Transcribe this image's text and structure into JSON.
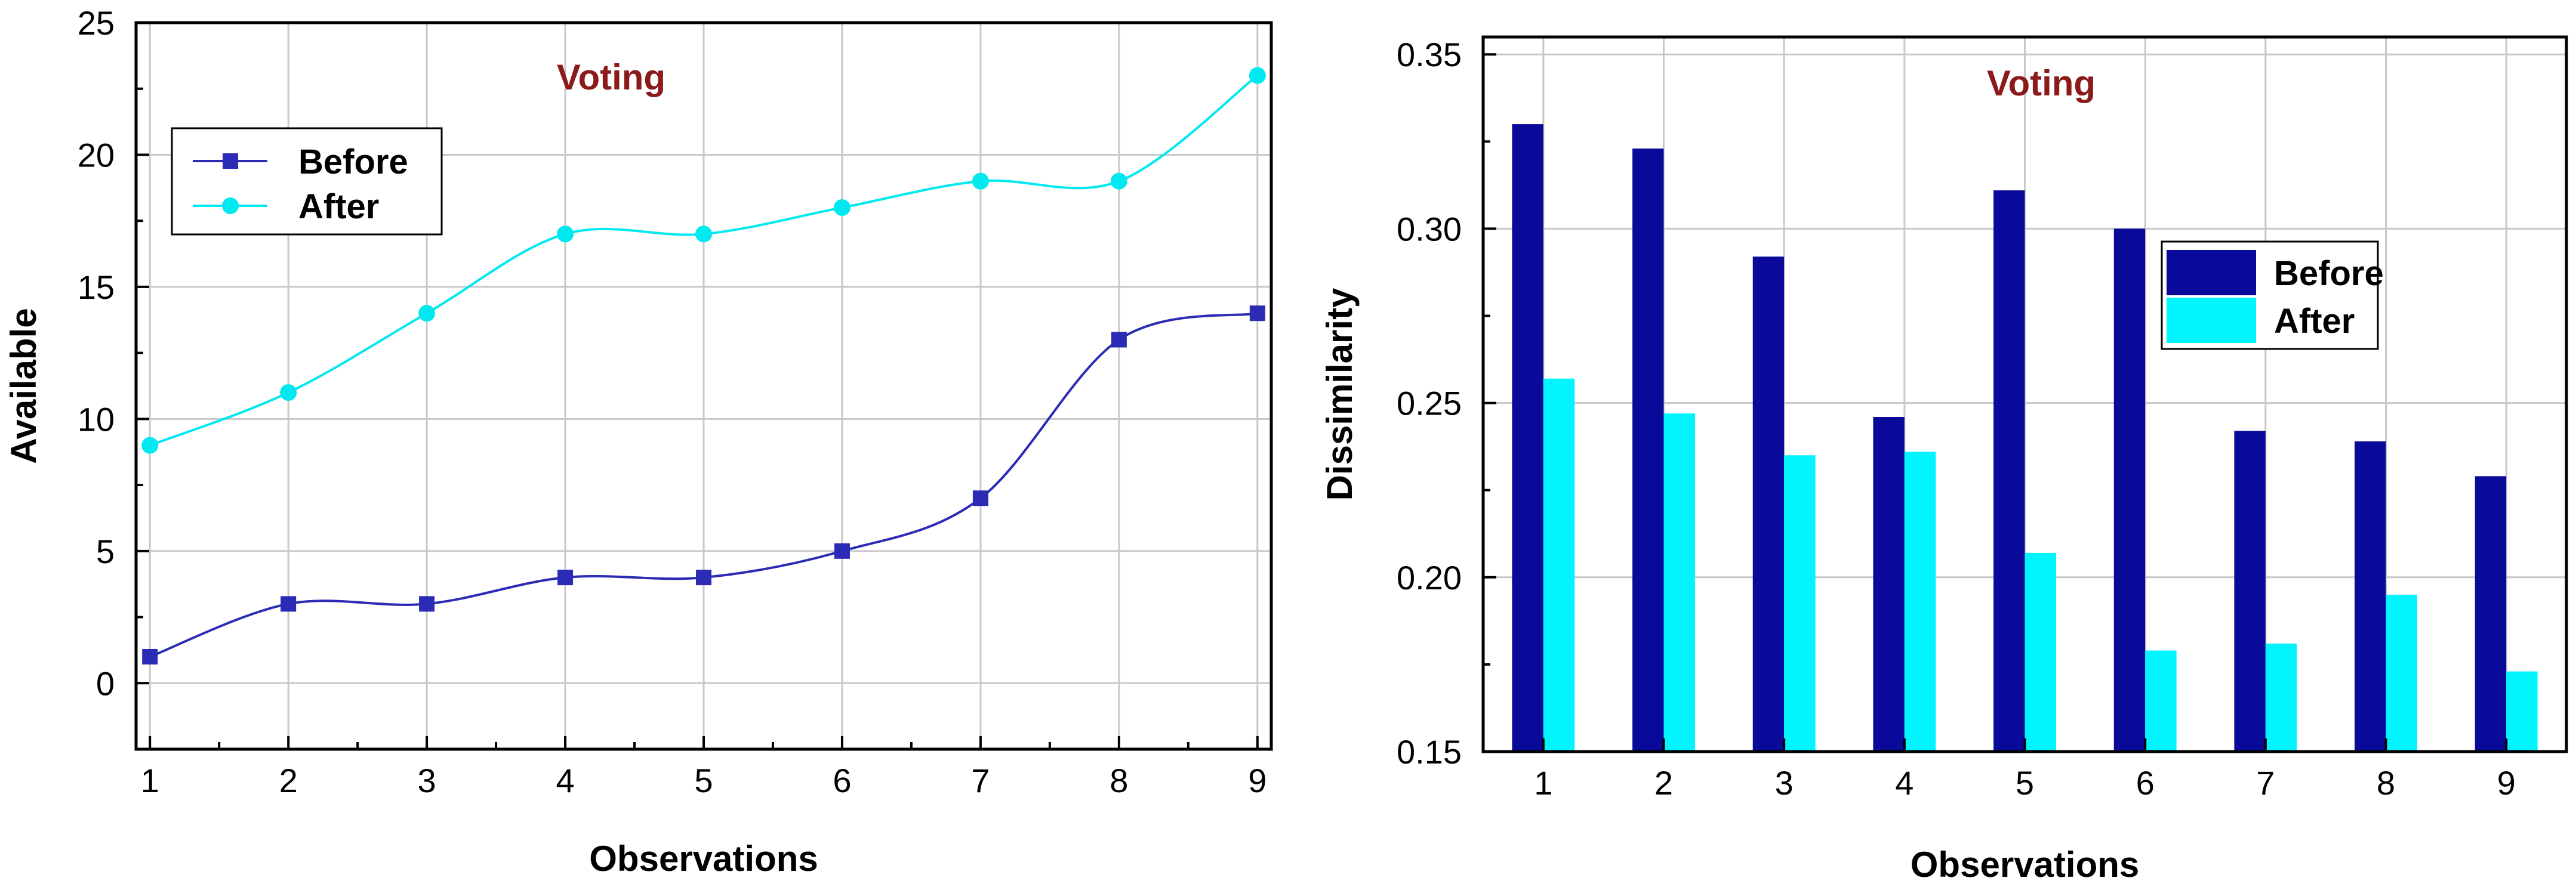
{
  "chart_data": [
    {
      "type": "line",
      "title": "Voting",
      "xlabel": "Observations",
      "ylabel": "Available",
      "x": [
        1,
        2,
        3,
        4,
        5,
        6,
        7,
        8,
        9
      ],
      "xlim": [
        0.9,
        9.1
      ],
      "ylim": [
        -2.5,
        25
      ],
      "yticks": [
        0,
        5,
        10,
        15,
        20,
        25
      ],
      "grid": true,
      "legend": "top-left",
      "series": [
        {
          "name": "Before",
          "values": [
            1,
            3,
            3,
            4,
            4,
            5,
            7,
            13,
            14
          ],
          "color": "#2b2bb5",
          "marker": "square"
        },
        {
          "name": "After",
          "values": [
            9,
            11,
            14,
            17,
            17,
            18,
            19,
            19,
            23
          ],
          "color": "#00e8f0",
          "marker": "circle"
        }
      ],
      "title_color": "#8b1a1a"
    },
    {
      "type": "bar",
      "title": "Voting",
      "xlabel": "Observations",
      "ylabel": "Dissimilarity",
      "categories": [
        "1",
        "2",
        "3",
        "4",
        "5",
        "6",
        "7",
        "8",
        "9"
      ],
      "ylim": [
        0.15,
        0.355
      ],
      "yticks": [
        "0.15",
        "0.20",
        "0.25",
        "0.30",
        "0.35"
      ],
      "grid": true,
      "legend": "top-right",
      "series": [
        {
          "name": "Before",
          "values": [
            0.33,
            0.323,
            0.292,
            0.246,
            0.311,
            0.3,
            0.242,
            0.239,
            0.229
          ],
          "color": "#0a0a9a"
        },
        {
          "name": "After",
          "values": [
            0.257,
            0.247,
            0.235,
            0.236,
            0.207,
            0.179,
            0.181,
            0.195,
            0.173
          ],
          "color": "#00f5ff"
        }
      ],
      "title_color": "#8b1a1a"
    }
  ]
}
